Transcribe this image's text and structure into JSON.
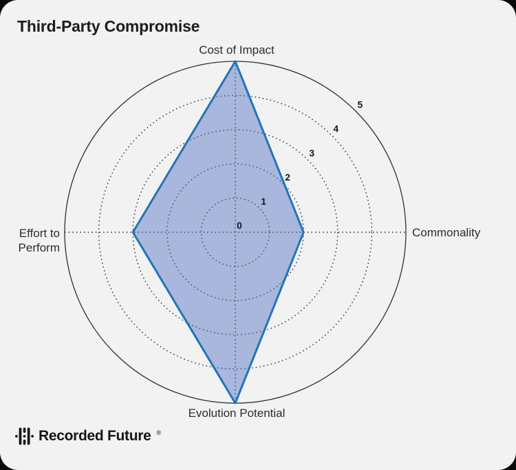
{
  "header": {
    "title": "Third-Party Compromise"
  },
  "chart_data": {
    "type": "radar",
    "title": "Third-Party Compromise",
    "categories": [
      "Cost of Impact",
      "Commonality",
      "Evolution Potential",
      "Effort to Perform"
    ],
    "values": [
      5,
      2,
      5,
      3
    ],
    "axes_positions": [
      "top",
      "right",
      "bottom",
      "left"
    ],
    "axis_label_lines": [
      [
        "Cost of Impact"
      ],
      [
        "Commonality"
      ],
      [
        "Evolution Potential"
      ],
      [
        "Effort to",
        "Perform"
      ]
    ],
    "axis_range": [
      0,
      5
    ],
    "tick_labels": [
      "0",
      "1",
      "2",
      "3",
      "4",
      "5"
    ],
    "grid": {
      "inner_rings": "dotted",
      "outer_ring": "solid",
      "radial_axes": "dotted-cross",
      "ring_count": 5
    },
    "legend": "none",
    "colors": {
      "polygon_stroke": "#2273b8",
      "polygon_fill": "rgba(77,110,190,0.45)",
      "grid": "#2a2b2f",
      "outer_ring": "#2e2f33",
      "tick_label": "#141519",
      "axis_label": "#2b2c2f"
    }
  },
  "footer": {
    "logo_text": "Recorded Future",
    "registered_mark": "®",
    "logo_mark": "recorded-future-pulse-icon"
  }
}
